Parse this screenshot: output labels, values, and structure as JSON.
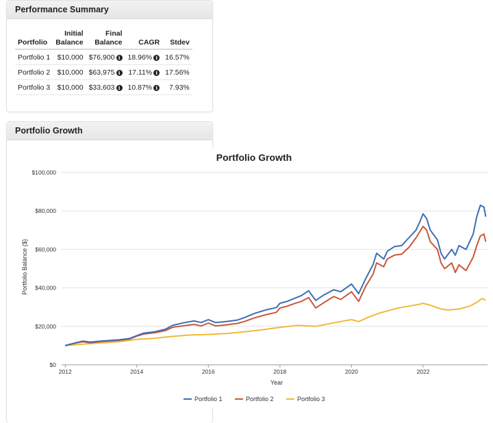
{
  "summary": {
    "title": "Performance Summary",
    "columns": {
      "portfolio": "Portfolio",
      "initial_1": "Initial",
      "initial_2": "Balance",
      "final_1": "Final",
      "final_2": "Balance",
      "cagr": "CAGR",
      "stdev": "Stdev"
    },
    "info_glyph": "i",
    "rows": [
      {
        "name": "Portfolio 1",
        "initial": "$10,000",
        "final": "$76,900",
        "cagr": "18.96%",
        "stdev": "16.57%"
      },
      {
        "name": "Portfolio 2",
        "initial": "$10,000",
        "final": "$63,975",
        "cagr": "17.11%",
        "stdev": "17.56%"
      },
      {
        "name": "Portfolio 3",
        "initial": "$10,000",
        "final": "$33,603",
        "cagr": "10.87%",
        "stdev": "7.93%"
      }
    ]
  },
  "growth_panel": {
    "title": "Portfolio Growth"
  },
  "chart_data": {
    "type": "line",
    "title": "Portfolio Growth",
    "xlabel": "Year",
    "ylabel": "Portfolio Balance ($)",
    "xlim": [
      2011.9,
      2023.8
    ],
    "ylim": [
      0,
      100000
    ],
    "x_ticks": [
      2012,
      2014,
      2016,
      2018,
      2020,
      2022
    ],
    "x_tick_labels": [
      "2012",
      "2014",
      "2016",
      "2018",
      "2020",
      "2022"
    ],
    "y_ticks": [
      0,
      20000,
      40000,
      60000,
      80000,
      100000
    ],
    "y_tick_labels": [
      "$0",
      "$20,000",
      "$40,000",
      "$60,000",
      "$80,000",
      "$100,000"
    ],
    "grid": true,
    "legend_position": "bottom-center",
    "series": [
      {
        "name": "Portfolio 1",
        "color": "#3e6db3",
        "points": [
          [
            2012.0,
            10000
          ],
          [
            2012.3,
            11500
          ],
          [
            2012.5,
            12300
          ],
          [
            2012.7,
            11800
          ],
          [
            2013.0,
            12400
          ],
          [
            2013.5,
            13000
          ],
          [
            2013.8,
            13700
          ],
          [
            2014.0,
            15200
          ],
          [
            2014.2,
            16500
          ],
          [
            2014.5,
            17200
          ],
          [
            2014.8,
            18500
          ],
          [
            2015.0,
            20500
          ],
          [
            2015.3,
            21800
          ],
          [
            2015.6,
            22800
          ],
          [
            2015.8,
            22000
          ],
          [
            2016.0,
            23500
          ],
          [
            2016.2,
            22000
          ],
          [
            2016.5,
            22500
          ],
          [
            2016.8,
            23200
          ],
          [
            2017.0,
            24500
          ],
          [
            2017.3,
            26800
          ],
          [
            2017.6,
            28500
          ],
          [
            2017.9,
            29800
          ],
          [
            2018.0,
            32000
          ],
          [
            2018.2,
            33000
          ],
          [
            2018.4,
            34500
          ],
          [
            2018.6,
            36000
          ],
          [
            2018.8,
            38500
          ],
          [
            2019.0,
            33500
          ],
          [
            2019.2,
            36000
          ],
          [
            2019.5,
            39000
          ],
          [
            2019.7,
            38000
          ],
          [
            2020.0,
            42000
          ],
          [
            2020.2,
            37000
          ],
          [
            2020.4,
            45000
          ],
          [
            2020.6,
            52000
          ],
          [
            2020.7,
            58000
          ],
          [
            2020.9,
            55000
          ],
          [
            2021.0,
            59000
          ],
          [
            2021.2,
            61500
          ],
          [
            2021.4,
            62000
          ],
          [
            2021.6,
            66000
          ],
          [
            2021.8,
            70000
          ],
          [
            2021.9,
            74000
          ],
          [
            2022.0,
            78500
          ],
          [
            2022.1,
            76000
          ],
          [
            2022.2,
            70000
          ],
          [
            2022.4,
            65000
          ],
          [
            2022.5,
            58000
          ],
          [
            2022.6,
            55000
          ],
          [
            2022.8,
            60000
          ],
          [
            2022.9,
            57000
          ],
          [
            2023.0,
            62000
          ],
          [
            2023.2,
            60000
          ],
          [
            2023.4,
            68000
          ],
          [
            2023.5,
            77000
          ],
          [
            2023.6,
            83000
          ],
          [
            2023.7,
            82000
          ],
          [
            2023.75,
            77000
          ]
        ]
      },
      {
        "name": "Portfolio 2",
        "color": "#c9573a",
        "points": [
          [
            2012.0,
            10000
          ],
          [
            2012.3,
            11300
          ],
          [
            2012.5,
            12000
          ],
          [
            2012.7,
            11500
          ],
          [
            2013.0,
            12100
          ],
          [
            2013.5,
            12700
          ],
          [
            2013.8,
            13400
          ],
          [
            2014.0,
            14900
          ],
          [
            2014.2,
            16000
          ],
          [
            2014.5,
            16700
          ],
          [
            2014.8,
            17800
          ],
          [
            2015.0,
            19500
          ],
          [
            2015.3,
            20300
          ],
          [
            2015.6,
            21000
          ],
          [
            2015.8,
            20200
          ],
          [
            2016.0,
            21700
          ],
          [
            2016.2,
            20200
          ],
          [
            2016.5,
            20800
          ],
          [
            2016.8,
            21500
          ],
          [
            2017.0,
            22500
          ],
          [
            2017.3,
            24500
          ],
          [
            2017.6,
            26000
          ],
          [
            2017.9,
            27300
          ],
          [
            2018.0,
            29500
          ],
          [
            2018.2,
            30500
          ],
          [
            2018.4,
            31800
          ],
          [
            2018.6,
            33000
          ],
          [
            2018.8,
            35000
          ],
          [
            2019.0,
            29500
          ],
          [
            2019.2,
            32000
          ],
          [
            2019.5,
            35500
          ],
          [
            2019.7,
            34000
          ],
          [
            2020.0,
            38000
          ],
          [
            2020.2,
            33000
          ],
          [
            2020.4,
            41000
          ],
          [
            2020.6,
            47000
          ],
          [
            2020.7,
            53000
          ],
          [
            2020.9,
            51000
          ],
          [
            2021.0,
            55000
          ],
          [
            2021.2,
            57000
          ],
          [
            2021.4,
            57500
          ],
          [
            2021.6,
            61000
          ],
          [
            2021.8,
            66000
          ],
          [
            2021.9,
            69000
          ],
          [
            2022.0,
            72000
          ],
          [
            2022.1,
            70000
          ],
          [
            2022.2,
            64000
          ],
          [
            2022.4,
            60000
          ],
          [
            2022.5,
            53000
          ],
          [
            2022.6,
            50000
          ],
          [
            2022.8,
            53000
          ],
          [
            2022.9,
            48000
          ],
          [
            2023.0,
            52000
          ],
          [
            2023.2,
            49000
          ],
          [
            2023.4,
            56000
          ],
          [
            2023.5,
            62000
          ],
          [
            2023.6,
            67000
          ],
          [
            2023.7,
            68000
          ],
          [
            2023.75,
            64000
          ]
        ]
      },
      {
        "name": "Portfolio 3",
        "color": "#f0b93a",
        "points": [
          [
            2012.0,
            10000
          ],
          [
            2012.5,
            10800
          ],
          [
            2013.0,
            11400
          ],
          [
            2013.5,
            12000
          ],
          [
            2014.0,
            13200
          ],
          [
            2014.5,
            13800
          ],
          [
            2015.0,
            14800
          ],
          [
            2015.5,
            15500
          ],
          [
            2016.0,
            15800
          ],
          [
            2016.5,
            16300
          ],
          [
            2017.0,
            17200
          ],
          [
            2017.5,
            18200
          ],
          [
            2018.0,
            19500
          ],
          [
            2018.5,
            20500
          ],
          [
            2019.0,
            20000
          ],
          [
            2019.5,
            21800
          ],
          [
            2020.0,
            23500
          ],
          [
            2020.2,
            22500
          ],
          [
            2020.5,
            25000
          ],
          [
            2020.8,
            27000
          ],
          [
            2021.0,
            28000
          ],
          [
            2021.3,
            29500
          ],
          [
            2021.6,
            30500
          ],
          [
            2021.9,
            31500
          ],
          [
            2022.0,
            32000
          ],
          [
            2022.2,
            31000
          ],
          [
            2022.5,
            29000
          ],
          [
            2022.7,
            28500
          ],
          [
            2023.0,
            29000
          ],
          [
            2023.3,
            30500
          ],
          [
            2023.5,
            32500
          ],
          [
            2023.65,
            34500
          ],
          [
            2023.75,
            33500
          ]
        ]
      }
    ]
  }
}
